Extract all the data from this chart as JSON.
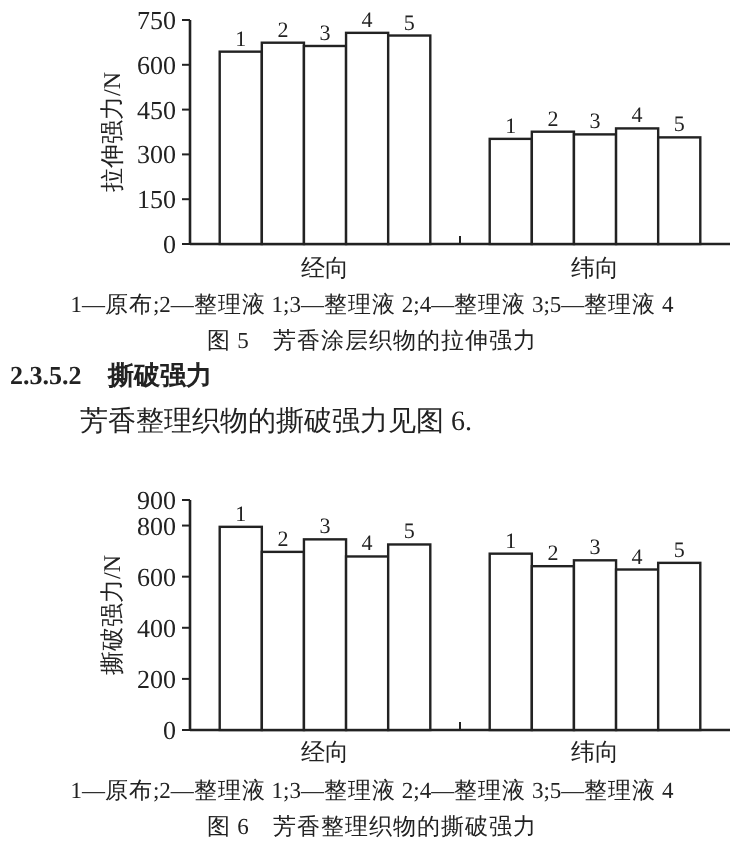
{
  "chart_data": [
    {
      "type": "bar",
      "title": "图 5　芳香涂层织物的拉伸强力",
      "ylabel": "拉伸强力/N",
      "categories": [
        "经向",
        "纬向"
      ],
      "series": [
        {
          "name": "1",
          "color": "#ffffff",
          "values": [
            644,
            352
          ]
        },
        {
          "name": "2",
          "color": "#ffffff",
          "values": [
            674,
            376
          ]
        },
        {
          "name": "3",
          "color": "#ffffff",
          "values": [
            663,
            367
          ]
        },
        {
          "name": "4",
          "color": "#ffffff",
          "values": [
            707,
            387
          ]
        },
        {
          "name": "5",
          "color": "#ffffff",
          "values": [
            698,
            357
          ]
        }
      ],
      "ylim": [
        0,
        750
      ],
      "yticks": [
        0,
        150,
        300,
        450,
        600,
        750
      ],
      "grid": false,
      "legend": false,
      "annotations": [
        "1—原布;2—整理液 1;3—整理液 2;4—整理液 3;5—整理液 4"
      ]
    },
    {
      "type": "bar",
      "title": "图 6　芳香整理织物的撕破强力",
      "ylabel": "撕破强力/N",
      "categories": [
        "经向",
        "纬向"
      ],
      "series": [
        {
          "name": "1",
          "color": "#ffffff",
          "values": [
            795,
            690
          ]
        },
        {
          "name": "2",
          "color": "#ffffff",
          "values": [
            697,
            641
          ]
        },
        {
          "name": "3",
          "color": "#ffffff",
          "values": [
            746,
            664
          ]
        },
        {
          "name": "4",
          "color": "#ffffff",
          "values": [
            679,
            628
          ]
        },
        {
          "name": "5",
          "color": "#ffffff",
          "values": [
            726,
            654
          ]
        }
      ],
      "ylim": [
        0,
        900
      ],
      "yticks": [
        0,
        200,
        400,
        600,
        800,
        900
      ],
      "grid": false,
      "legend": false,
      "annotations": [
        "1—原布;2—整理液 1;3—整理液 2;4—整理液 3;5—整理液 4",
        "2.3.5.2　撕破强力",
        "芳香整理织物的撕破强力见图 6."
      ]
    }
  ]
}
